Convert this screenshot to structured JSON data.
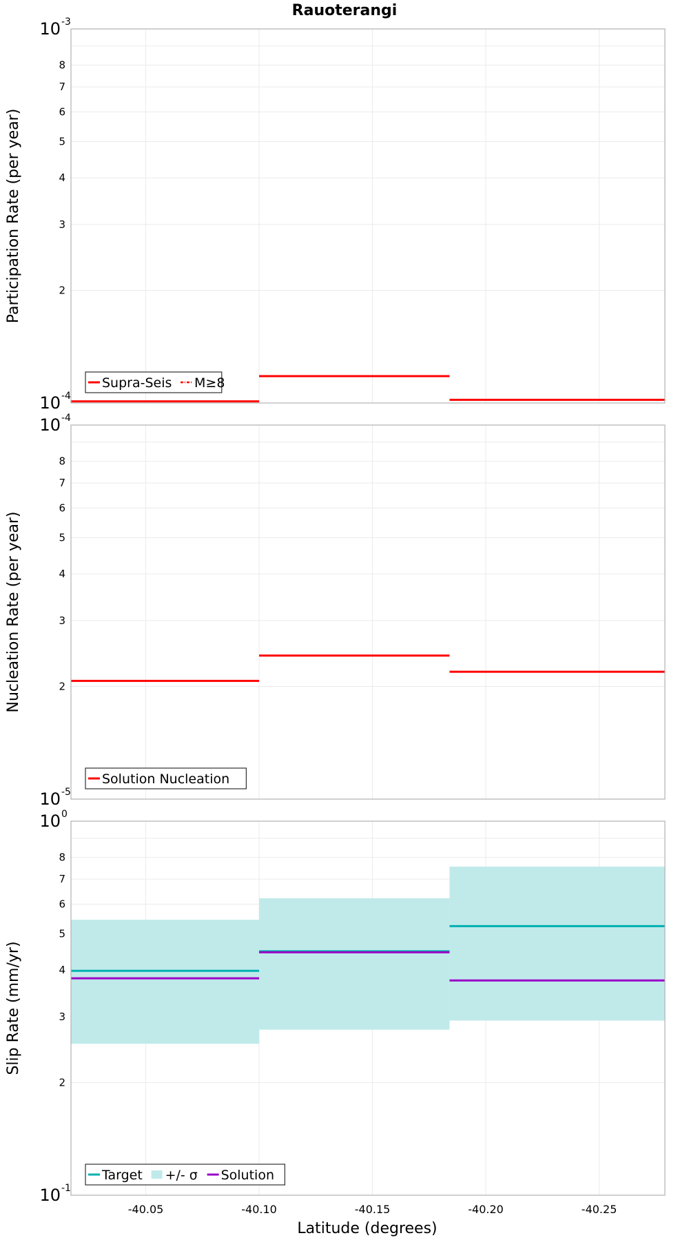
{
  "chart_data": {
    "title": "Rauoterangi",
    "xlabel": "Latitude (degrees)",
    "xlim": [
      -40.017,
      -40.279
    ],
    "x_ticks": [
      "-40.05",
      "-40.10",
      "-40.15",
      "-40.20",
      "-40.25"
    ],
    "x_tick_values": [
      -40.05,
      -40.1,
      -40.15,
      -40.2,
      -40.25
    ],
    "grid": true,
    "panels": [
      {
        "type": "line",
        "ylabel": "Participation Rate (per year)",
        "yscale": "log",
        "ylim": [
          0.0001,
          0.001
        ],
        "y_major_ticks": [
          {
            "base": "10",
            "exp": "-3"
          },
          {
            "base": "10",
            "exp": "-4"
          }
        ],
        "y_minor_ticks": [
          "8",
          "7",
          "6",
          "5",
          "4",
          "3",
          "2"
        ],
        "legend": {
          "placement": "bottom-left",
          "entries": [
            {
              "label": "Supra-Seis",
              "color": "#ff0000",
              "style": "solid"
            },
            {
              "label": "M≥8",
              "color": "#ff0000",
              "style": "dash-dot"
            }
          ]
        },
        "series": [
          {
            "name": "Supra-Seis",
            "color": "#ff0000",
            "segments": [
              {
                "x": [
                  -40.017,
                  -40.1
                ],
                "y": 0.000101
              },
              {
                "x": [
                  -40.1,
                  -40.184
                ],
                "y": 0.000118
              },
              {
                "x": [
                  -40.184,
                  -40.279
                ],
                "y": 0.000102
              }
            ]
          }
        ]
      },
      {
        "type": "line",
        "ylabel": "Nucleation Rate (per year)",
        "yscale": "log",
        "ylim": [
          1e-05,
          0.0001
        ],
        "y_major_ticks": [
          {
            "base": "10",
            "exp": "-4"
          },
          {
            "base": "10",
            "exp": "-5"
          }
        ],
        "y_minor_ticks": [
          "8",
          "7",
          "6",
          "5",
          "4",
          "3",
          "2"
        ],
        "legend": {
          "placement": "bottom-left",
          "entries": [
            {
              "label": "Solution Nucleation",
              "color": "#ff0000",
              "style": "solid"
            }
          ]
        },
        "series": [
          {
            "name": "Solution Nucleation",
            "color": "#ff0000",
            "segments": [
              {
                "x": [
                  -40.017,
                  -40.1
                ],
                "y": 2.07e-05
              },
              {
                "x": [
                  -40.1,
                  -40.184
                ],
                "y": 2.42e-05
              },
              {
                "x": [
                  -40.184,
                  -40.279
                ],
                "y": 2.19e-05
              }
            ]
          }
        ]
      },
      {
        "type": "line",
        "ylabel": "Slip Rate (mm/yr)",
        "yscale": "log",
        "ylim": [
          0.1,
          1
        ],
        "y_major_ticks": [
          {
            "base": "10",
            "exp": "0"
          },
          {
            "base": "10",
            "exp": "-1"
          }
        ],
        "y_minor_ticks": [
          "8",
          "7",
          "6",
          "5",
          "4",
          "3",
          "2"
        ],
        "legend": {
          "placement": "bottom-left",
          "entries": [
            {
              "label": "Target",
              "color": "#00b0b0",
              "style": "solid"
            },
            {
              "label": "+/- σ",
              "color": "#c0eaea",
              "style": "fill"
            },
            {
              "label": "Solution",
              "color": "#9a00c8",
              "style": "solid"
            }
          ]
        },
        "bands": [
          {
            "name": "+/- σ",
            "color": "#c0eaea",
            "segments": [
              {
                "x": [
                  -40.017,
                  -40.1
                ],
                "low": 0.254,
                "high": 0.545
              },
              {
                "x": [
                  -40.1,
                  -40.184
                ],
                "low": 0.277,
                "high": 0.622
              },
              {
                "x": [
                  -40.184,
                  -40.279
                ],
                "low": 0.293,
                "high": 0.756
              }
            ]
          }
        ],
        "series": [
          {
            "name": "Target",
            "color": "#00b0b0",
            "segments": [
              {
                "x": [
                  -40.017,
                  -40.1
                ],
                "y": 0.398
              },
              {
                "x": [
                  -40.1,
                  -40.184
                ],
                "y": 0.449
              },
              {
                "x": [
                  -40.184,
                  -40.279
                ],
                "y": 0.524
              }
            ]
          },
          {
            "name": "Solution",
            "color": "#9a00c8",
            "segments": [
              {
                "x": [
                  -40.017,
                  -40.1
                ],
                "y": 0.38
              },
              {
                "x": [
                  -40.1,
                  -40.184
                ],
                "y": 0.446
              },
              {
                "x": [
                  -40.184,
                  -40.279
                ],
                "y": 0.375
              }
            ]
          }
        ]
      }
    ]
  }
}
